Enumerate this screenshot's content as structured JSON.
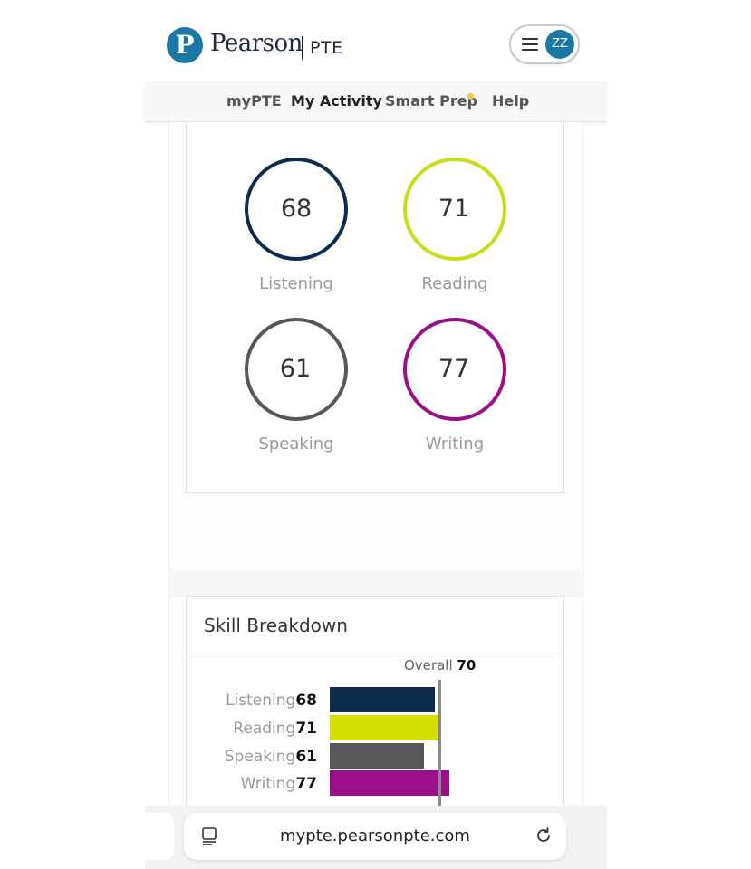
{
  "header": {
    "logo_mark": "P",
    "brand": "Pearson",
    "product": "PTE",
    "avatar_initials": "ZZ"
  },
  "nav": {
    "items": [
      {
        "label": "myPTE"
      },
      {
        "label": "My Activity"
      },
      {
        "label": "Smart Prep"
      },
      {
        "label": "Help"
      }
    ]
  },
  "scores": [
    {
      "skill": "Listening",
      "value": "68",
      "color": "#0d2b4d"
    },
    {
      "skill": "Reading",
      "value": "71",
      "color": "#c9dc1b"
    },
    {
      "skill": "Speaking",
      "value": "61",
      "color": "#575759"
    },
    {
      "skill": "Writing",
      "value": "77",
      "color": "#9b0f8a"
    }
  ],
  "breakdown": {
    "title": "Skill Breakdown",
    "overall_label": "Overall",
    "overall_value": "70",
    "overall_score": 70,
    "rows": [
      {
        "label": "Listening",
        "value": "68",
        "score": 68,
        "color": "#0d2b4d"
      },
      {
        "label": "Reading",
        "value": "71",
        "score": 71,
        "color": "#d4de00"
      },
      {
        "label": "Speaking",
        "value": "61",
        "score": 61,
        "color": "#575759"
      },
      {
        "label": "Writing",
        "value": "77",
        "score": 77,
        "color": "#9b0f8a"
      }
    ]
  },
  "browser": {
    "url": "mypte.pearsonpte.com"
  }
}
